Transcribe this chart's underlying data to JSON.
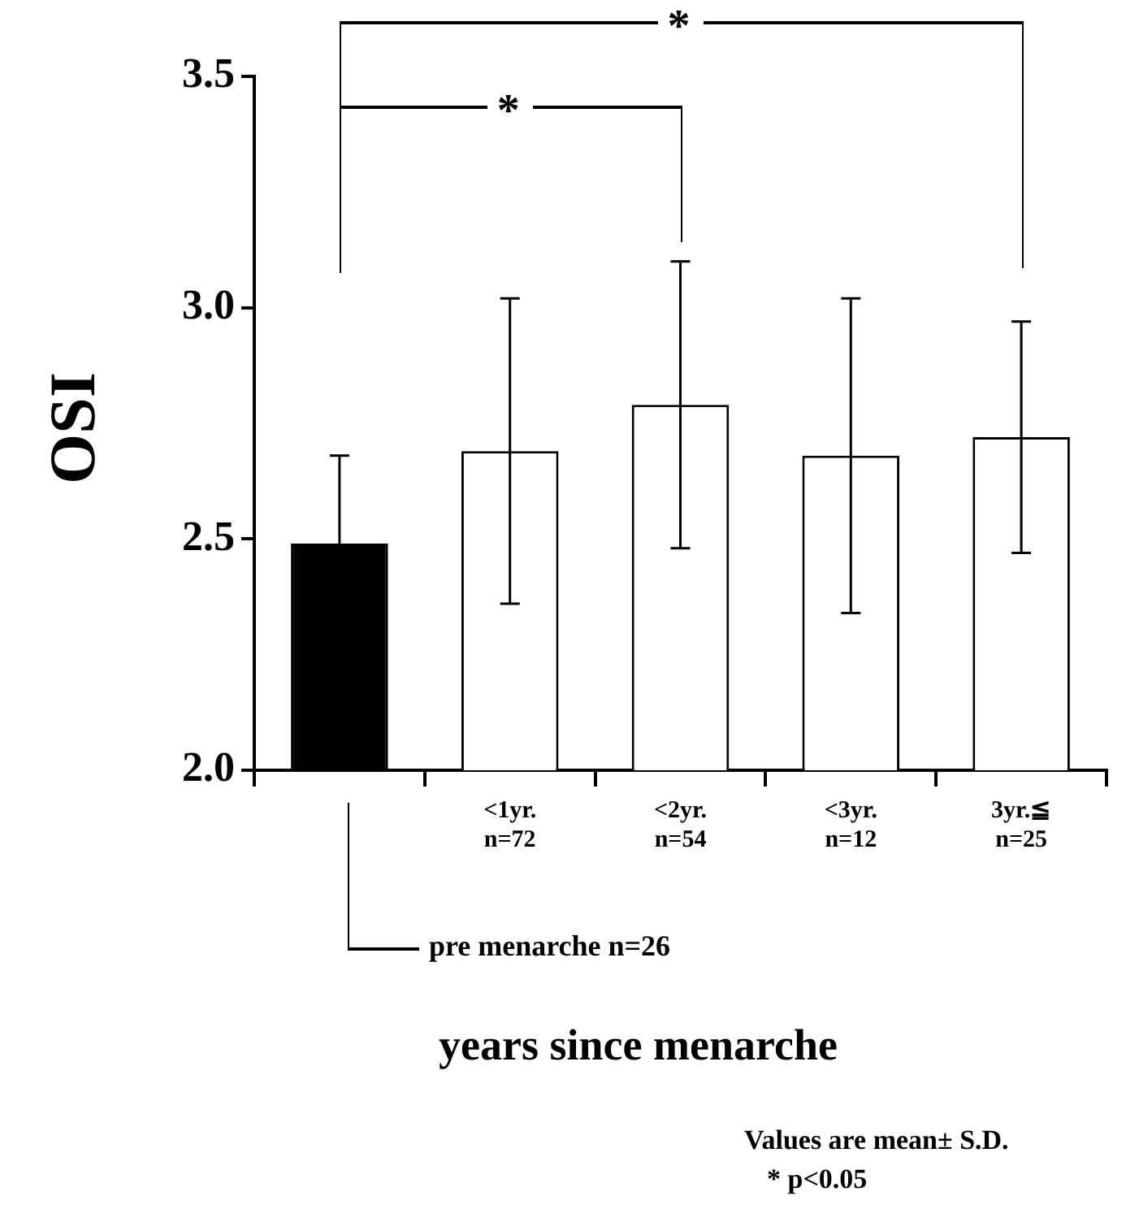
{
  "chart_data": {
    "type": "bar",
    "categories": [
      null,
      "<1yr.\nn=72",
      "<2yr.\nn=54",
      "<3yr.\nn=12",
      "3yr.≦\nn=25"
    ],
    "values": [
      2.49,
      2.69,
      2.79,
      2.68,
      2.72
    ],
    "colors": [
      "#000000",
      "#ffffff",
      "#ffffff",
      "#ffffff",
      "#ffffff"
    ],
    "errors": [
      0.19,
      0.33,
      0.31,
      0.34,
      0.25
    ],
    "ylim": [
      2.0,
      3.5
    ],
    "yticks": [
      {
        "value": 2,
        "label": "2.0"
      },
      {
        "value": 2.5,
        "label": "2.5"
      },
      {
        "value": 3,
        "label": "3.0"
      },
      {
        "value": 3.5,
        "label": "3.5"
      }
    ],
    "xlabel": "years since menarche",
    "ylabel": "OSI",
    "annotations": [
      "*",
      "*",
      "pre menarche n=26",
      "Values are mean± S.D.",
      "* p<0.05"
    ]
  }
}
